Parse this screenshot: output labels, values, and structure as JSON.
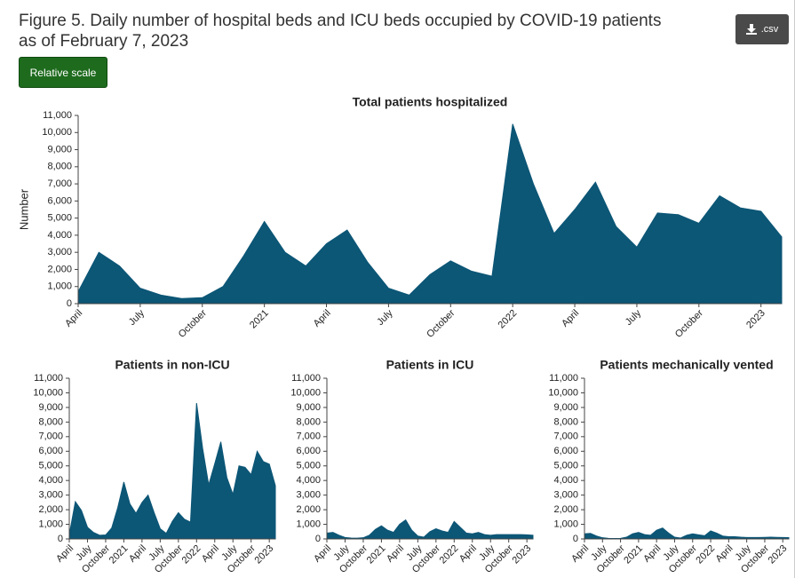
{
  "header": {
    "title": "Figure 5. Daily number of hospital beds and ICU beds occupied by COVID-19 patients as of February 7, 2023",
    "scale_button": "Relative scale",
    "csv_button": ".csv"
  },
  "chart_data": [
    {
      "type": "area",
      "title": "Total patients hospitalized",
      "ylabel": "Number",
      "color": "#0c5676",
      "x": [
        "2020-04",
        "2020-05",
        "2020-06",
        "2020-07",
        "2020-08",
        "2020-09",
        "2020-10",
        "2020-11",
        "2020-12",
        "2021-01",
        "2021-02",
        "2021-03",
        "2021-04",
        "2021-05",
        "2021-06",
        "2021-07",
        "2021-08",
        "2021-09",
        "2021-10",
        "2021-11",
        "2021-12",
        "2022-01",
        "2022-02",
        "2022-03",
        "2022-04",
        "2022-05",
        "2022-06",
        "2022-07",
        "2022-08",
        "2022-09",
        "2022-10",
        "2022-11",
        "2022-12",
        "2023-01",
        "2023-02"
      ],
      "values": [
        700,
        3000,
        2200,
        900,
        500,
        300,
        350,
        1000,
        2800,
        4800,
        3000,
        2200,
        3500,
        4300,
        2400,
        900,
        500,
        1700,
        2500,
        1900,
        1600,
        10500,
        7000,
        4100,
        5500,
        7100,
        4500,
        3300,
        5300,
        5200,
        4700,
        6300,
        5600,
        5400,
        3900
      ],
      "xlim": [
        "2020-04",
        "2023-02"
      ],
      "xticks": [
        {
          "value": "2020-04",
          "label": "April"
        },
        {
          "value": "2020-07",
          "label": "July"
        },
        {
          "value": "2020-10",
          "label": "October"
        },
        {
          "value": "2021-01",
          "label": "2021"
        },
        {
          "value": "2021-04",
          "label": "April"
        },
        {
          "value": "2021-07",
          "label": "July"
        },
        {
          "value": "2021-10",
          "label": "October"
        },
        {
          "value": "2022-01",
          "label": "2022"
        },
        {
          "value": "2022-04",
          "label": "April"
        },
        {
          "value": "2022-07",
          "label": "July"
        },
        {
          "value": "2022-10",
          "label": "October"
        },
        {
          "value": "2023-01",
          "label": "2023"
        }
      ],
      "ylim": [
        0,
        11000
      ],
      "yticks": [
        0,
        {
          "value": 1000,
          "label": "1,000"
        },
        {
          "value": 2000,
          "label": "2,000"
        },
        {
          "value": 3000,
          "label": "3,000"
        },
        {
          "value": 4000,
          "label": "4,000"
        },
        {
          "value": 5000,
          "label": "5,000"
        },
        {
          "value": 6000,
          "label": "6,000"
        },
        {
          "value": 7000,
          "label": "7,000"
        },
        {
          "value": 8000,
          "label": "8,000"
        },
        {
          "value": 9000,
          "label": "9,000"
        },
        {
          "value": 10000,
          "label": "10,000"
        },
        {
          "value": 11000,
          "label": "11,000"
        }
      ]
    },
    {
      "type": "area",
      "title": "Patients in non-ICU",
      "color": "#0c5676",
      "x": [
        "2020-04",
        "2020-05",
        "2020-06",
        "2020-07",
        "2020-08",
        "2020-09",
        "2020-10",
        "2020-11",
        "2020-12",
        "2021-01",
        "2021-02",
        "2021-03",
        "2021-04",
        "2021-05",
        "2021-06",
        "2021-07",
        "2021-08",
        "2021-09",
        "2021-10",
        "2021-11",
        "2021-12",
        "2022-01",
        "2022-02",
        "2022-03",
        "2022-04",
        "2022-05",
        "2022-06",
        "2022-07",
        "2022-08",
        "2022-09",
        "2022-10",
        "2022-11",
        "2022-12",
        "2023-01",
        "2023-02"
      ],
      "values": [
        300,
        2550,
        1950,
        800,
        440,
        250,
        270,
        750,
        2150,
        3900,
        2400,
        1750,
        2500,
        3000,
        1800,
        700,
        380,
        1200,
        1800,
        1350,
        1150,
        9300,
        6200,
        3700,
        5150,
        6650,
        4200,
        3050,
        5000,
        4900,
        4400,
        6000,
        5300,
        5120,
        3650
      ],
      "xlim": [
        "2020-04",
        "2023-02"
      ],
      "xticks": [
        {
          "value": "2020-04",
          "label": "April"
        },
        {
          "value": "2020-07",
          "label": "July"
        },
        {
          "value": "2020-10",
          "label": "October"
        },
        {
          "value": "2021-01",
          "label": "2021"
        },
        {
          "value": "2021-04",
          "label": "April"
        },
        {
          "value": "2021-07",
          "label": "July"
        },
        {
          "value": "2021-10",
          "label": "October"
        },
        {
          "value": "2022-01",
          "label": "2022"
        },
        {
          "value": "2022-04",
          "label": "April"
        },
        {
          "value": "2022-07",
          "label": "July"
        },
        {
          "value": "2022-10",
          "label": "October"
        },
        {
          "value": "2023-01",
          "label": "2023"
        }
      ],
      "ylim": [
        0,
        11000
      ],
      "yticks": [
        0,
        {
          "value": 1000,
          "label": "1,000"
        },
        {
          "value": 2000,
          "label": "2,000"
        },
        {
          "value": 3000,
          "label": "3,000"
        },
        {
          "value": 4000,
          "label": "4,000"
        },
        {
          "value": 5000,
          "label": "5,000"
        },
        {
          "value": 6000,
          "label": "6,000"
        },
        {
          "value": 7000,
          "label": "7,000"
        },
        {
          "value": 8000,
          "label": "8,000"
        },
        {
          "value": 9000,
          "label": "9,000"
        },
        {
          "value": 10000,
          "label": "10,000"
        },
        {
          "value": 11000,
          "label": "11,000"
        }
      ]
    },
    {
      "type": "area",
      "title": "Patients in ICU",
      "color": "#0c5676",
      "x": [
        "2020-04",
        "2020-05",
        "2020-06",
        "2020-07",
        "2020-08",
        "2020-09",
        "2020-10",
        "2020-11",
        "2020-12",
        "2021-01",
        "2021-02",
        "2021-03",
        "2021-04",
        "2021-05",
        "2021-06",
        "2021-07",
        "2021-08",
        "2021-09",
        "2021-10",
        "2021-11",
        "2021-12",
        "2022-01",
        "2022-02",
        "2022-03",
        "2022-04",
        "2022-05",
        "2022-06",
        "2022-07",
        "2022-08",
        "2022-09",
        "2022-10",
        "2022-11",
        "2022-12",
        "2023-01",
        "2023-02"
      ],
      "values": [
        400,
        450,
        250,
        100,
        60,
        50,
        80,
        250,
        650,
        900,
        600,
        450,
        1000,
        1300,
        600,
        200,
        120,
        500,
        700,
        550,
        450,
        1200,
        800,
        400,
        350,
        450,
        300,
        250,
        300,
        300,
        300,
        300,
        300,
        280,
        250
      ],
      "xlim": [
        "2020-04",
        "2023-02"
      ],
      "xticks": [
        {
          "value": "2020-04",
          "label": "April"
        },
        {
          "value": "2020-07",
          "label": "July"
        },
        {
          "value": "2020-10",
          "label": "October"
        },
        {
          "value": "2021-01",
          "label": "2021"
        },
        {
          "value": "2021-04",
          "label": "April"
        },
        {
          "value": "2021-07",
          "label": "July"
        },
        {
          "value": "2021-10",
          "label": "October"
        },
        {
          "value": "2022-01",
          "label": "2022"
        },
        {
          "value": "2022-04",
          "label": "April"
        },
        {
          "value": "2022-07",
          "label": "July"
        },
        {
          "value": "2022-10",
          "label": "October"
        },
        {
          "value": "2023-01",
          "label": "2023"
        }
      ],
      "ylim": [
        0,
        11000
      ],
      "yticks": [
        0,
        {
          "value": 1000,
          "label": "1,000"
        },
        {
          "value": 2000,
          "label": "2,000"
        },
        {
          "value": 3000,
          "label": "3,000"
        },
        {
          "value": 4000,
          "label": "4,000"
        },
        {
          "value": 5000,
          "label": "5,000"
        },
        {
          "value": 6000,
          "label": "6,000"
        },
        {
          "value": 7000,
          "label": "7,000"
        },
        {
          "value": 8000,
          "label": "8,000"
        },
        {
          "value": 9000,
          "label": "9,000"
        },
        {
          "value": 10000,
          "label": "10,000"
        },
        {
          "value": 11000,
          "label": "11,000"
        }
      ]
    },
    {
      "type": "area",
      "title": "Patients mechanically vented",
      "color": "#0c5676",
      "x": [
        "2020-04",
        "2020-05",
        "2020-06",
        "2020-07",
        "2020-08",
        "2020-09",
        "2020-10",
        "2020-11",
        "2020-12",
        "2021-01",
        "2021-02",
        "2021-03",
        "2021-04",
        "2021-05",
        "2021-06",
        "2021-07",
        "2021-08",
        "2021-09",
        "2021-10",
        "2021-11",
        "2021-12",
        "2022-01",
        "2022-02",
        "2022-03",
        "2022-04",
        "2022-05",
        "2022-06",
        "2022-07",
        "2022-08",
        "2022-09",
        "2022-10",
        "2022-11",
        "2022-12",
        "2023-01",
        "2023-02"
      ],
      "values": [
        350,
        380,
        200,
        80,
        40,
        30,
        40,
        120,
        350,
        450,
        300,
        250,
        600,
        750,
        400,
        120,
        60,
        250,
        350,
        280,
        220,
        550,
        400,
        200,
        150,
        150,
        120,
        100,
        100,
        100,
        110,
        120,
        110,
        100,
        90
      ],
      "xlim": [
        "2020-04",
        "2023-02"
      ],
      "xticks": [
        {
          "value": "2020-04",
          "label": "April"
        },
        {
          "value": "2020-07",
          "label": "July"
        },
        {
          "value": "2020-10",
          "label": "October"
        },
        {
          "value": "2021-01",
          "label": "2021"
        },
        {
          "value": "2021-04",
          "label": "April"
        },
        {
          "value": "2021-07",
          "label": "July"
        },
        {
          "value": "2021-10",
          "label": "October"
        },
        {
          "value": "2022-01",
          "label": "2022"
        },
        {
          "value": "2022-04",
          "label": "April"
        },
        {
          "value": "2022-07",
          "label": "July"
        },
        {
          "value": "2022-10",
          "label": "October"
        },
        {
          "value": "2023-01",
          "label": "2023"
        }
      ],
      "ylim": [
        0,
        11000
      ],
      "yticks": [
        0,
        {
          "value": 1000,
          "label": "1,000"
        },
        {
          "value": 2000,
          "label": "2,000"
        },
        {
          "value": 3000,
          "label": "3,000"
        },
        {
          "value": 4000,
          "label": "4,000"
        },
        {
          "value": 5000,
          "label": "5,000"
        },
        {
          "value": 6000,
          "label": "6,000"
        },
        {
          "value": 7000,
          "label": "7,000"
        },
        {
          "value": 8000,
          "label": "8,000"
        },
        {
          "value": 9000,
          "label": "9,000"
        },
        {
          "value": 10000,
          "label": "10,000"
        },
        {
          "value": 11000,
          "label": "11,000"
        }
      ]
    }
  ]
}
